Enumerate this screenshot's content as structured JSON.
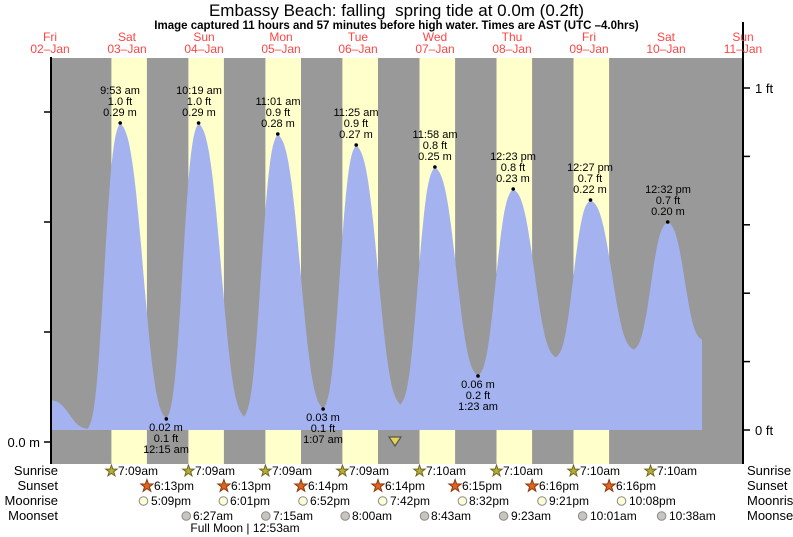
{
  "title": "Embassy Beach: falling  spring tide at 0.0m (0.2ft)",
  "subtitle": "Image captured 11 hours and 57 minutes before high water. Times are AST (UTC –4.0hrs)",
  "colors": {
    "plot_bg": "#999999",
    "daylight_band": "#ffffcc",
    "tide_fill": "#a4b2f0",
    "day_label": "#ff4545",
    "axis": "#000000",
    "sunrise_star_fill": "#b9ad36",
    "sunrise_star_stroke": "#6e6820",
    "sunset_star_fill": "#e0641c",
    "sunset_star_stroke": "#8a3a10",
    "moonrise_fill": "#ffffd6",
    "moonrise_stroke": "#8a8a8a",
    "moonset_fill": "#c6c6be",
    "moonset_stroke": "#8a8a8a",
    "marker_fill": "#e8d44c",
    "marker_stroke": "#555555"
  },
  "days": [
    {
      "weekday": "Fri",
      "date": "02–Jan"
    },
    {
      "weekday": "Sat",
      "date": "03–Jan"
    },
    {
      "weekday": "Sun",
      "date": "04–Jan"
    },
    {
      "weekday": "Mon",
      "date": "05–Jan"
    },
    {
      "weekday": "Tue",
      "date": "06–Jan"
    },
    {
      "weekday": "Wed",
      "date": "07–Jan"
    },
    {
      "weekday": "Thu",
      "date": "08–Jan"
    },
    {
      "weekday": "Fri",
      "date": "09–Jan"
    },
    {
      "weekday": "Sat",
      "date": "10–Jan"
    },
    {
      "weekday": "Sun",
      "date": "11–Jan"
    }
  ],
  "chart_data": {
    "type": "area",
    "title": "Embassy Beach: falling  spring tide at 0.0m (0.2ft)",
    "x_axis": "Days from Fri 02-Jan (noon) to Sun 11-Jan (noon), day labels at local noon",
    "y_axis_left": {
      "unit": "m",
      "label": "0.0 m",
      "ticks_m": [
        0,
        0.1,
        0.2,
        0.3
      ]
    },
    "y_axis_right": {
      "unit": "ft",
      "labels": [
        "0 ft",
        "1 ft"
      ],
      "ticks_ft": [
        0,
        0.2,
        0.4,
        0.6,
        0.8,
        1.0
      ]
    },
    "highs": [
      {
        "d": 0.412,
        "time": "9:53 am",
        "ft": "1.0 ft",
        "m": "0.29 m",
        "mv": 0.29
      },
      {
        "d": 1.43,
        "time": "10:19 am",
        "ft": "1.0 ft",
        "m": "0.29 m",
        "mv": 0.29
      },
      {
        "d": 2.459,
        "time": "11:01 am",
        "ft": "0.9 ft",
        "m": "0.28 m",
        "mv": 0.28
      },
      {
        "d": 3.476,
        "time": "11:25 am",
        "ft": "0.9 ft",
        "m": "0.27 m",
        "mv": 0.27
      },
      {
        "d": 4.499,
        "time": "11:58 am",
        "ft": "0.8 ft",
        "m": "0.25 m",
        "mv": 0.25
      },
      {
        "d": 5.516,
        "time": "12:23 pm",
        "ft": "0.8 ft",
        "m": "0.23 m",
        "mv": 0.23
      },
      {
        "d": 6.519,
        "time": "12:27 pm",
        "ft": "0.7 ft",
        "m": "0.22 m",
        "mv": 0.22
      },
      {
        "d": 7.522,
        "time": "12:32 pm",
        "ft": "0.7 ft",
        "m": "0.20 m",
        "mv": 0.2
      }
    ],
    "lows": [
      {
        "d": 1.01,
        "time": "12:15 am",
        "ft": "0.1 ft",
        "m": "0.02 m",
        "mv": 0.021
      },
      {
        "d": 3.047,
        "time": "1:07 am",
        "ft": "0.1 ft",
        "m": "0.03 m",
        "mv": 0.03
      },
      {
        "d": 5.058,
        "time": "1:23 am",
        "ft": "0.2 ft",
        "m": "0.06 m",
        "mv": 0.06
      }
    ],
    "curve_extremes": [
      {
        "d": -0.487,
        "m": 0.038
      },
      {
        "d": -0.01,
        "m": 0.012
      },
      {
        "d": 0.412,
        "m": 0.29
      },
      {
        "d": 1.01,
        "m": 0.021
      },
      {
        "d": 1.43,
        "m": 0.29
      },
      {
        "d": 2.02,
        "m": 0.023
      },
      {
        "d": 2.459,
        "m": 0.28
      },
      {
        "d": 3.047,
        "m": 0.03
      },
      {
        "d": 3.476,
        "m": 0.27
      },
      {
        "d": 4.05,
        "m": 0.034
      },
      {
        "d": 4.499,
        "m": 0.25
      },
      {
        "d": 5.058,
        "m": 0.06
      },
      {
        "d": 5.516,
        "m": 0.23
      },
      {
        "d": 6.07,
        "m": 0.077
      },
      {
        "d": 6.519,
        "m": 0.22
      },
      {
        "d": 7.08,
        "m": 0.084
      },
      {
        "d": 7.522,
        "m": 0.2
      },
      {
        "d": 7.967,
        "m": 0.093
      }
    ],
    "current_time_marker": {
      "d": 3.981
    }
  },
  "astro": {
    "row_labels": [
      "Sunrise",
      "Sunset",
      "Moonrise",
      "Moonset"
    ],
    "sunrise": [
      {
        "day": 0,
        "time": "7:09am"
      },
      {
        "day": 1,
        "time": "7:09am"
      },
      {
        "day": 2,
        "time": "7:09am"
      },
      {
        "day": 3,
        "time": "7:09am"
      },
      {
        "day": 4,
        "time": "7:10am"
      },
      {
        "day": 5,
        "time": "7:10am"
      },
      {
        "day": 6,
        "time": "7:10am"
      },
      {
        "day": 7,
        "time": "7:10am"
      }
    ],
    "sunset": [
      {
        "day": 0,
        "time": "6:13pm"
      },
      {
        "day": 1,
        "time": "6:13pm"
      },
      {
        "day": 2,
        "time": "6:14pm"
      },
      {
        "day": 3,
        "time": "6:14pm"
      },
      {
        "day": 4,
        "time": "6:15pm"
      },
      {
        "day": 5,
        "time": "6:16pm"
      },
      {
        "day": 6,
        "time": "6:16pm"
      }
    ],
    "moonrise": [
      {
        "day": 0,
        "time": "5:09pm"
      },
      {
        "day": 1,
        "time": "6:01pm"
      },
      {
        "day": 2,
        "time": "6:52pm"
      },
      {
        "day": 3,
        "time": "7:42pm"
      },
      {
        "day": 4,
        "time": "8:32pm"
      },
      {
        "day": 5,
        "time": "9:21pm"
      },
      {
        "day": 6,
        "time": "10:08pm"
      }
    ],
    "moonset": [
      {
        "day": 1,
        "time": "6:27am"
      },
      {
        "day": 2,
        "time": "7:15am"
      },
      {
        "day": 3,
        "time": "8:00am"
      },
      {
        "day": 4,
        "time": "8:43am"
      },
      {
        "day": 5,
        "time": "9:23am"
      },
      {
        "day": 6,
        "time": "10:01am"
      },
      {
        "day": 7,
        "time": "10:38am"
      }
    ],
    "full_moon": {
      "label": "Full Moon | 12:53am",
      "day": 2.03
    }
  }
}
